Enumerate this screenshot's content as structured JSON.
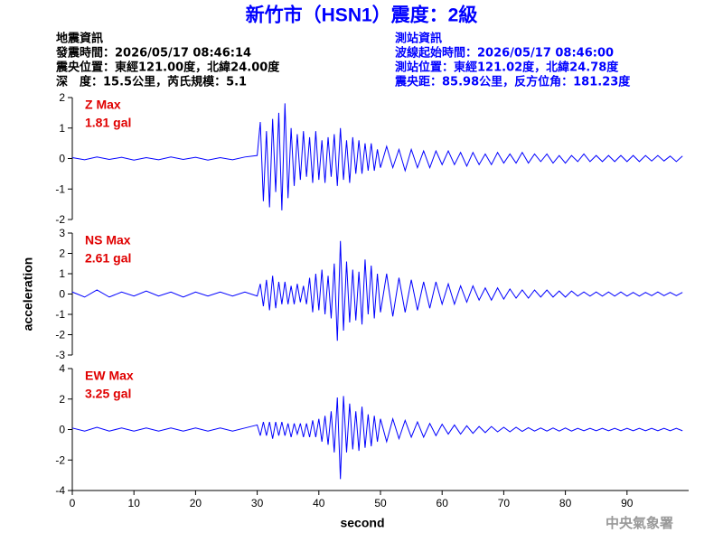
{
  "header": {
    "title": "新竹市（HSN1）震度：2級",
    "left": [
      "地震資訊",
      "發震時間：2026/05/17 08:46:14",
      "震央位置：東經121.00度，北緯24.00度",
      "深　度：15.5公里，芮氏規模：5.1"
    ],
    "right": [
      "測站資訊",
      "波線起始時間：2026/05/17 08:46:00",
      "測站位置：東經121.02度，北緯24.78度",
      "震央距：85.98公里，反方位角：181.23度"
    ],
    "watermark": "中央氣象署"
  },
  "chart_data": [
    {
      "type": "line",
      "title": "Z Max",
      "subtitle": "1.81 gal",
      "color": "#0000ff",
      "x": [
        0,
        2,
        4,
        6,
        8,
        10,
        12,
        14,
        16,
        18,
        20,
        22,
        24,
        26,
        28,
        30,
        30.5,
        31,
        31.5,
        32,
        32.5,
        33,
        33.5,
        34,
        34.5,
        35,
        35.5,
        36,
        36.5,
        37,
        37.5,
        38,
        38.5,
        39,
        39.5,
        40,
        40.5,
        41,
        41.5,
        42,
        42.5,
        43,
        43.5,
        44,
        44.5,
        45,
        45.5,
        46,
        46.5,
        47,
        47.5,
        48,
        48.5,
        49,
        49.5,
        50,
        51,
        52,
        53,
        54,
        55,
        56,
        57,
        58,
        59,
        60,
        61,
        62,
        63,
        64,
        65,
        66,
        67,
        68,
        69,
        70,
        71,
        72,
        73,
        74,
        75,
        76,
        77,
        78,
        79,
        80,
        81,
        82,
        83,
        84,
        85,
        86,
        87,
        88,
        89,
        90,
        91,
        92,
        93,
        94,
        95,
        96,
        97,
        98,
        99
      ],
      "values": [
        0.03,
        -0.04,
        0.05,
        -0.03,
        0.04,
        -0.05,
        0.03,
        -0.04,
        0.05,
        -0.03,
        0.04,
        -0.05,
        0.03,
        -0.04,
        0.05,
        0.1,
        1.2,
        -1.4,
        0.9,
        -1.6,
        1.3,
        -1.1,
        1.5,
        -1.7,
        1.81,
        -1.3,
        1.0,
        -0.9,
        0.8,
        -0.7,
        0.9,
        -0.6,
        0.7,
        -0.8,
        0.9,
        -0.7,
        0.6,
        -0.8,
        0.7,
        -0.6,
        0.8,
        -0.9,
        1.0,
        -0.7,
        0.6,
        -0.8,
        0.7,
        -0.5,
        0.6,
        -0.5,
        0.5,
        -0.4,
        0.5,
        -0.4,
        0.3,
        -0.3,
        0.4,
        -0.3,
        0.3,
        -0.4,
        0.3,
        -0.3,
        0.25,
        -0.3,
        0.25,
        -0.2,
        0.25,
        -0.2,
        0.2,
        -0.25,
        0.2,
        -0.2,
        0.15,
        -0.2,
        0.2,
        -0.15,
        0.15,
        -0.15,
        0.2,
        -0.15,
        0.15,
        -0.1,
        0.15,
        -0.15,
        0.1,
        -0.15,
        0.1,
        -0.1,
        0.15,
        -0.1,
        0.1,
        -0.1,
        0.1,
        -0.1,
        0.1,
        -0.1,
        0.1,
        -0.1,
        0.1,
        -0.08,
        0.1,
        -0.08,
        0.08,
        -0.1,
        0.08
      ],
      "xlim": [
        0,
        100
      ],
      "ylim": [
        -2,
        2
      ],
      "yticks": [
        -2,
        -1,
        0,
        1,
        2
      ]
    },
    {
      "type": "line",
      "title": "NS Max",
      "subtitle": "2.61 gal",
      "color": "#0000ff",
      "ylabel": "acceleration",
      "x": [
        0,
        2,
        4,
        6,
        8,
        10,
        12,
        14,
        16,
        18,
        20,
        22,
        24,
        26,
        28,
        30,
        30.5,
        31,
        31.5,
        32,
        32.5,
        33,
        33.5,
        34,
        34.5,
        35,
        35.5,
        36,
        36.5,
        37,
        37.5,
        38,
        38.5,
        39,
        39.5,
        40,
        40.5,
        41,
        41.5,
        42,
        42.5,
        43,
        43.5,
        44,
        44.5,
        45,
        45.5,
        46,
        46.5,
        47,
        47.5,
        48,
        48.5,
        49,
        49.5,
        50,
        51,
        52,
        53,
        54,
        55,
        56,
        57,
        58,
        59,
        60,
        61,
        62,
        63,
        64,
        65,
        66,
        67,
        68,
        69,
        70,
        71,
        72,
        73,
        74,
        75,
        76,
        77,
        78,
        79,
        80,
        81,
        82,
        83,
        84,
        85,
        86,
        87,
        88,
        89,
        90,
        91,
        92,
        93,
        94,
        95,
        96,
        97,
        98,
        99
      ],
      "values": [
        0.1,
        -0.15,
        0.2,
        -0.15,
        0.1,
        -0.1,
        0.15,
        -0.1,
        0.1,
        -0.15,
        0.1,
        -0.1,
        0.1,
        -0.1,
        0.1,
        -0.1,
        0.5,
        -0.6,
        0.7,
        -0.8,
        0.9,
        -0.7,
        0.6,
        -0.5,
        0.6,
        -0.5,
        0.4,
        -0.5,
        0.5,
        -0.4,
        0.4,
        -0.5,
        0.8,
        -0.9,
        1.0,
        -0.8,
        1.2,
        -1.0,
        0.9,
        -1.2,
        1.5,
        -2.3,
        2.61,
        -1.8,
        1.6,
        -1.4,
        1.2,
        -1.3,
        1.1,
        -1.5,
        1.7,
        -1.0,
        1.4,
        -1.2,
        1.0,
        -0.9,
        1.0,
        -1.1,
        0.8,
        -0.9,
        0.7,
        -0.8,
        0.6,
        -0.7,
        0.6,
        -0.5,
        0.5,
        -0.5,
        0.4,
        -0.4,
        0.4,
        -0.3,
        0.3,
        -0.3,
        0.3,
        -0.25,
        0.25,
        -0.2,
        0.2,
        -0.2,
        0.2,
        -0.15,
        0.2,
        -0.15,
        0.15,
        -0.15,
        0.15,
        -0.1,
        0.1,
        -0.1,
        0.1,
        -0.1,
        0.1,
        -0.1,
        0.1,
        -0.1,
        0.08,
        -0.1,
        0.08,
        -0.08,
        0.1,
        -0.08,
        0.08,
        -0.08,
        0.08
      ],
      "xlim": [
        0,
        100
      ],
      "ylim": [
        -3,
        3
      ],
      "yticks": [
        -3,
        -2,
        -1,
        0,
        1,
        2,
        3
      ]
    },
    {
      "type": "line",
      "title": "EW Max",
      "subtitle": "3.25 gal",
      "color": "#0000ff",
      "xlabel": "second",
      "x": [
        0,
        2,
        4,
        6,
        8,
        10,
        12,
        14,
        16,
        18,
        20,
        22,
        24,
        26,
        28,
        30,
        30.5,
        31,
        31.5,
        32,
        32.5,
        33,
        33.5,
        34,
        34.5,
        35,
        35.5,
        36,
        36.5,
        37,
        37.5,
        38,
        38.5,
        39,
        39.5,
        40,
        40.5,
        41,
        41.5,
        42,
        42.5,
        43,
        43.5,
        44,
        44.5,
        45,
        45.5,
        46,
        46.5,
        47,
        47.5,
        48,
        48.5,
        49,
        49.5,
        50,
        51,
        52,
        53,
        54,
        55,
        56,
        57,
        58,
        59,
        60,
        61,
        62,
        63,
        64,
        65,
        66,
        67,
        68,
        69,
        70,
        71,
        72,
        73,
        74,
        75,
        76,
        77,
        78,
        79,
        80,
        81,
        82,
        83,
        84,
        85,
        86,
        87,
        88,
        89,
        90,
        91,
        92,
        93,
        94,
        95,
        96,
        97,
        98,
        99
      ],
      "values": [
        0.1,
        -0.1,
        0.15,
        -0.1,
        0.1,
        -0.1,
        0.1,
        -0.1,
        0.1,
        -0.1,
        0.1,
        -0.1,
        0.1,
        -0.1,
        0.1,
        0.3,
        -0.4,
        0.5,
        -0.4,
        0.5,
        -0.6,
        0.5,
        -0.4,
        0.5,
        -0.4,
        0.4,
        -0.5,
        0.4,
        -0.3,
        0.4,
        -0.5,
        0.4,
        -0.5,
        0.6,
        -0.5,
        0.7,
        -0.8,
        0.9,
        -1.0,
        1.2,
        -1.5,
        2.1,
        -3.25,
        2.2,
        -1.5,
        1.7,
        -1.3,
        1.2,
        -1.4,
        1.5,
        -1.2,
        1.0,
        -1.1,
        0.9,
        -0.8,
        0.7,
        -0.8,
        0.7,
        -0.6,
        0.6,
        -0.5,
        0.5,
        -0.5,
        0.4,
        -0.4,
        0.35,
        -0.3,
        0.3,
        -0.3,
        0.25,
        -0.25,
        0.2,
        -0.2,
        0.2,
        -0.15,
        0.15,
        -0.15,
        0.15,
        -0.12,
        0.12,
        -0.1,
        0.1,
        -0.1,
        0.1,
        -0.1,
        0.1,
        -0.1,
        0.08,
        -0.08,
        0.08,
        -0.08,
        0.08,
        -0.08,
        0.08,
        -0.08,
        0.08,
        -0.08,
        0.08,
        -0.08,
        0.08,
        -0.08,
        0.08,
        -0.08,
        0.08,
        -0.08
      ],
      "xlim": [
        0,
        100
      ],
      "ylim": [
        -4,
        4
      ],
      "yticks": [
        -4,
        -2,
        0,
        2,
        4
      ],
      "xticks": [
        0,
        10,
        20,
        30,
        40,
        50,
        60,
        70,
        80,
        90
      ]
    }
  ]
}
